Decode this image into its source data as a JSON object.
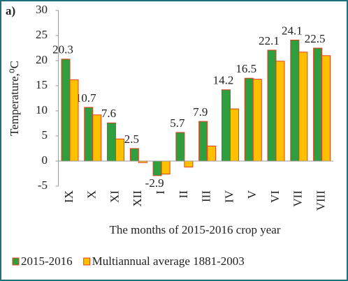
{
  "panel_label": "a)",
  "chart_data": {
    "type": "bar",
    "y_label": "Temperature,⁰C",
    "x_label": "The months of 2015-2016 crop year",
    "categories": [
      "IX",
      "X",
      "XI",
      "XII",
      "I",
      "II",
      "III",
      "IV",
      "V",
      "VI",
      "VII",
      "VIII"
    ],
    "series": [
      {
        "name": "2015-2016",
        "color": "#2f9e3f",
        "values": [
          20.3,
          10.7,
          7.6,
          2.5,
          -2.9,
          5.7,
          7.9,
          14.2,
          16.5,
          22.1,
          24.1,
          22.5
        ]
      },
      {
        "name": "Multiannual average 1881-2003",
        "color": "#ffc000",
        "values": [
          16.2,
          9.2,
          4.4,
          -0.3,
          -2.6,
          -1.2,
          3.0,
          10.4,
          16.3,
          19.9,
          21.7,
          21.0
        ]
      }
    ],
    "data_labels_series": 0,
    "bar_edge_color": "#e0401a",
    "ylim": [
      -5,
      30
    ],
    "yticks": [
      -5,
      0,
      5,
      10,
      15,
      20,
      25,
      30
    ],
    "grid": false,
    "legend": "bottom"
  }
}
